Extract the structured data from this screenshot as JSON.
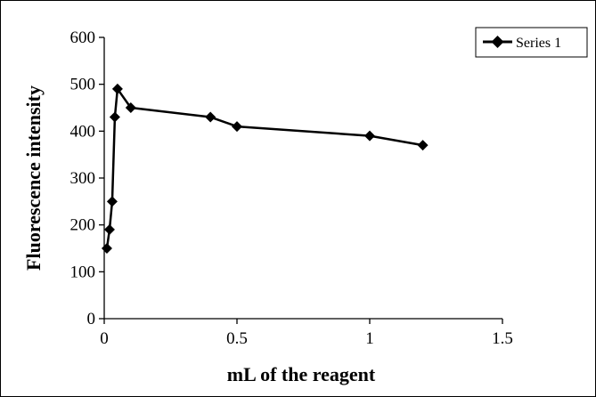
{
  "chart_data": {
    "type": "line",
    "title": "",
    "xlabel": "mL of the reagent",
    "ylabel": "Fluorescence intensity",
    "xlim": [
      0,
      1.5
    ],
    "ylim": [
      0,
      600
    ],
    "x_ticks": [
      "0",
      "0.5",
      "1",
      "1.5"
    ],
    "y_ticks": [
      "0",
      "100",
      "200",
      "300",
      "400",
      "500",
      "600"
    ],
    "grid": false,
    "legend_position": "top-right",
    "series": [
      {
        "name": "Series 1",
        "color": "#000000",
        "marker": "diamond",
        "x": [
          0.01,
          0.02,
          0.03,
          0.04,
          0.05,
          0.1,
          0.4,
          0.5,
          1.0,
          1.2
        ],
        "y": [
          150,
          190,
          250,
          430,
          490,
          450,
          430,
          410,
          390,
          370
        ]
      }
    ]
  }
}
